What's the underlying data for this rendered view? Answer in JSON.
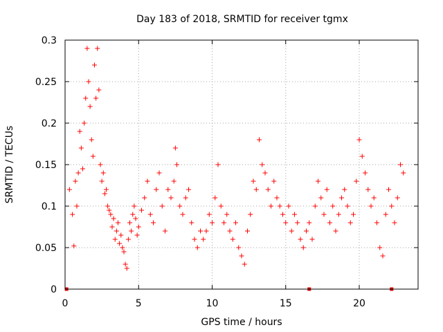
{
  "chart_data": {
    "type": "scatter",
    "title": "Day 183 of 2018, SRMTID for receiver tgmx",
    "xlabel": "GPS time / hours",
    "ylabel": "SRMTID / TECUs",
    "xlim": [
      0,
      24
    ],
    "ylim": [
      0,
      0.3
    ],
    "xticks": [
      0,
      5,
      10,
      15,
      20
    ],
    "xtick_labels": [
      "0",
      "5",
      "10",
      "15",
      "20"
    ],
    "yticks": [
      0,
      0.05,
      0.1,
      0.15,
      0.2,
      0.25,
      0.3
    ],
    "ytick_labels": [
      "0",
      "0.05",
      "0.1",
      "0.15",
      "0.2",
      "0.25",
      "0.3"
    ],
    "grid": true,
    "marker": "+",
    "color": "#ff0000",
    "gap_markers_x": [
      0.1,
      16.6,
      22.2
    ],
    "series": [
      {
        "name": "SRMTID",
        "points": [
          [
            0.3,
            0.12
          ],
          [
            0.5,
            0.09
          ],
          [
            0.6,
            0.052
          ],
          [
            0.7,
            0.13
          ],
          [
            0.8,
            0.1
          ],
          [
            0.9,
            0.14
          ],
          [
            1.0,
            0.19
          ],
          [
            1.1,
            0.17
          ],
          [
            1.2,
            0.145
          ],
          [
            1.3,
            0.2
          ],
          [
            1.4,
            0.23
          ],
          [
            1.5,
            0.29
          ],
          [
            1.6,
            0.25
          ],
          [
            1.7,
            0.22
          ],
          [
            1.8,
            0.18
          ],
          [
            1.9,
            0.16
          ],
          [
            2.0,
            0.27
          ],
          [
            2.1,
            0.23
          ],
          [
            2.2,
            0.29
          ],
          [
            2.3,
            0.24
          ],
          [
            2.4,
            0.15
          ],
          [
            2.5,
            0.13
          ],
          [
            2.6,
            0.14
          ],
          [
            2.7,
            0.115
          ],
          [
            2.8,
            0.12
          ],
          [
            2.9,
            0.1
          ],
          [
            3.0,
            0.095
          ],
          [
            3.1,
            0.09
          ],
          [
            3.2,
            0.075
          ],
          [
            3.3,
            0.085
          ],
          [
            3.4,
            0.06
          ],
          [
            3.5,
            0.07
          ],
          [
            3.6,
            0.08
          ],
          [
            3.7,
            0.055
          ],
          [
            3.8,
            0.065
          ],
          [
            3.9,
            0.05
          ],
          [
            4.0,
            0.045
          ],
          [
            4.1,
            0.03
          ],
          [
            4.2,
            0.025
          ],
          [
            4.3,
            0.06
          ],
          [
            4.4,
            0.08
          ],
          [
            4.5,
            0.07
          ],
          [
            4.6,
            0.09
          ],
          [
            4.7,
            0.1
          ],
          [
            4.8,
            0.085
          ],
          [
            4.9,
            0.065
          ],
          [
            5.0,
            0.075
          ],
          [
            5.2,
            0.095
          ],
          [
            5.4,
            0.11
          ],
          [
            5.6,
            0.13
          ],
          [
            5.8,
            0.09
          ],
          [
            6.0,
            0.08
          ],
          [
            6.2,
            0.12
          ],
          [
            6.4,
            0.14
          ],
          [
            6.6,
            0.1
          ],
          [
            6.8,
            0.07
          ],
          [
            7.0,
            0.12
          ],
          [
            7.2,
            0.11
          ],
          [
            7.4,
            0.13
          ],
          [
            7.5,
            0.17
          ],
          [
            7.6,
            0.15
          ],
          [
            7.8,
            0.1
          ],
          [
            8.0,
            0.09
          ],
          [
            8.2,
            0.11
          ],
          [
            8.4,
            0.12
          ],
          [
            8.6,
            0.08
          ],
          [
            8.8,
            0.06
          ],
          [
            9.0,
            0.05
          ],
          [
            9.2,
            0.07
          ],
          [
            9.4,
            0.06
          ],
          [
            9.6,
            0.07
          ],
          [
            9.8,
            0.09
          ],
          [
            10.0,
            0.08
          ],
          [
            10.2,
            0.11
          ],
          [
            10.4,
            0.15
          ],
          [
            10.6,
            0.1
          ],
          [
            10.8,
            0.08
          ],
          [
            11.0,
            0.09
          ],
          [
            11.2,
            0.07
          ],
          [
            11.4,
            0.06
          ],
          [
            11.6,
            0.08
          ],
          [
            11.8,
            0.05
          ],
          [
            12.0,
            0.04
          ],
          [
            12.2,
            0.03
          ],
          [
            12.4,
            0.07
          ],
          [
            12.6,
            0.09
          ],
          [
            12.8,
            0.13
          ],
          [
            13.0,
            0.12
          ],
          [
            13.2,
            0.18
          ],
          [
            13.4,
            0.15
          ],
          [
            13.6,
            0.14
          ],
          [
            13.8,
            0.12
          ],
          [
            14.0,
            0.1
          ],
          [
            14.2,
            0.13
          ],
          [
            14.4,
            0.11
          ],
          [
            14.6,
            0.1
          ],
          [
            14.8,
            0.09
          ],
          [
            15.0,
            0.08
          ],
          [
            15.2,
            0.1
          ],
          [
            15.4,
            0.07
          ],
          [
            15.6,
            0.09
          ],
          [
            15.8,
            0.08
          ],
          [
            16.0,
            0.06
          ],
          [
            16.2,
            0.05
          ],
          [
            16.4,
            0.07
          ],
          [
            16.6,
            0.08
          ],
          [
            16.8,
            0.06
          ],
          [
            17.0,
            0.1
          ],
          [
            17.2,
            0.13
          ],
          [
            17.4,
            0.11
          ],
          [
            17.6,
            0.09
          ],
          [
            17.8,
            0.12
          ],
          [
            18.0,
            0.08
          ],
          [
            18.2,
            0.1
          ],
          [
            18.4,
            0.07
          ],
          [
            18.6,
            0.09
          ],
          [
            18.8,
            0.11
          ],
          [
            19.0,
            0.12
          ],
          [
            19.2,
            0.1
          ],
          [
            19.4,
            0.08
          ],
          [
            19.6,
            0.09
          ],
          [
            19.8,
            0.13
          ],
          [
            20.0,
            0.18
          ],
          [
            20.2,
            0.16
          ],
          [
            20.4,
            0.14
          ],
          [
            20.6,
            0.12
          ],
          [
            20.8,
            0.1
          ],
          [
            21.0,
            0.11
          ],
          [
            21.2,
            0.08
          ],
          [
            21.4,
            0.05
          ],
          [
            21.6,
            0.04
          ],
          [
            21.8,
            0.09
          ],
          [
            22.0,
            0.12
          ],
          [
            22.2,
            0.1
          ],
          [
            22.4,
            0.08
          ],
          [
            22.6,
            0.11
          ],
          [
            22.8,
            0.15
          ],
          [
            23.0,
            0.14
          ]
        ]
      }
    ]
  }
}
